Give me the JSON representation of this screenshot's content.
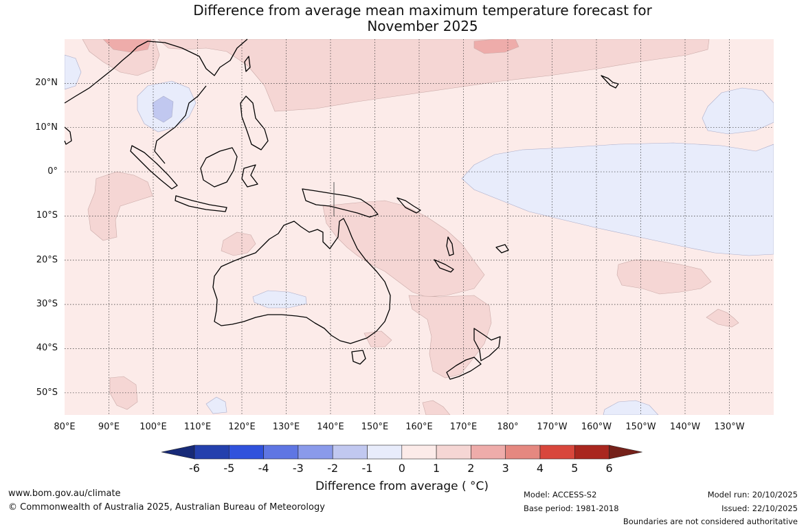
{
  "title_line1": "Difference from average mean maximum temperature forecast for",
  "title_line2": "November 2025",
  "map": {
    "lat_labels": [
      "20°N",
      "10°N",
      "0°",
      "10°S",
      "20°S",
      "30°S",
      "40°S",
      "50°S"
    ],
    "lon_labels": [
      "80°E",
      "90°E",
      "100°E",
      "110°E",
      "120°E",
      "130°E",
      "140°E",
      "150°E",
      "160°E",
      "170°E",
      "180°",
      "170°W",
      "160°W",
      "150°W",
      "140°W",
      "130°W"
    ],
    "lat_range": [
      -55,
      30
    ],
    "lon_range": [
      80,
      240
    ],
    "colors": {
      "anomaly_0_to_1": "#fcebe9",
      "anomaly_1_to_2": "#f5d6d4",
      "anomaly_2_to_3": "#eeacaa",
      "anomaly_neg1_to_0": "#e8ecfb",
      "anomaly_neg2_to_neg1": "#c1c8f0",
      "grid": "#555555",
      "coast": "#000000"
    }
  },
  "colorbar": {
    "ticks": [
      "-6",
      "-5",
      "-4",
      "-3",
      "-2",
      "-1",
      "0",
      "1",
      "2",
      "3",
      "4",
      "5",
      "6"
    ],
    "colors": [
      "#172a78",
      "#2440ad",
      "#3052dc",
      "#5f76e3",
      "#8a9aea",
      "#c1c8f0",
      "#e8ecfb",
      "#fcebe9",
      "#f5d6d4",
      "#eeacaa",
      "#e58880",
      "#d8473c",
      "#a9271f",
      "#75211a"
    ],
    "label": "Difference from average ( °C)"
  },
  "footer": {
    "website": "www.bom.gov.au/climate",
    "copyright": "© Commonwealth of Australia 2025, Australian Bureau of Meteorology",
    "model": "Model: ACCESS-S2",
    "base_period": "Base period: 1981-2018",
    "model_run": "Model run: 20/10/2025",
    "issued": "Issued: 22/10/2025",
    "disclaimer": "Boundaries are not considered authoritative"
  }
}
